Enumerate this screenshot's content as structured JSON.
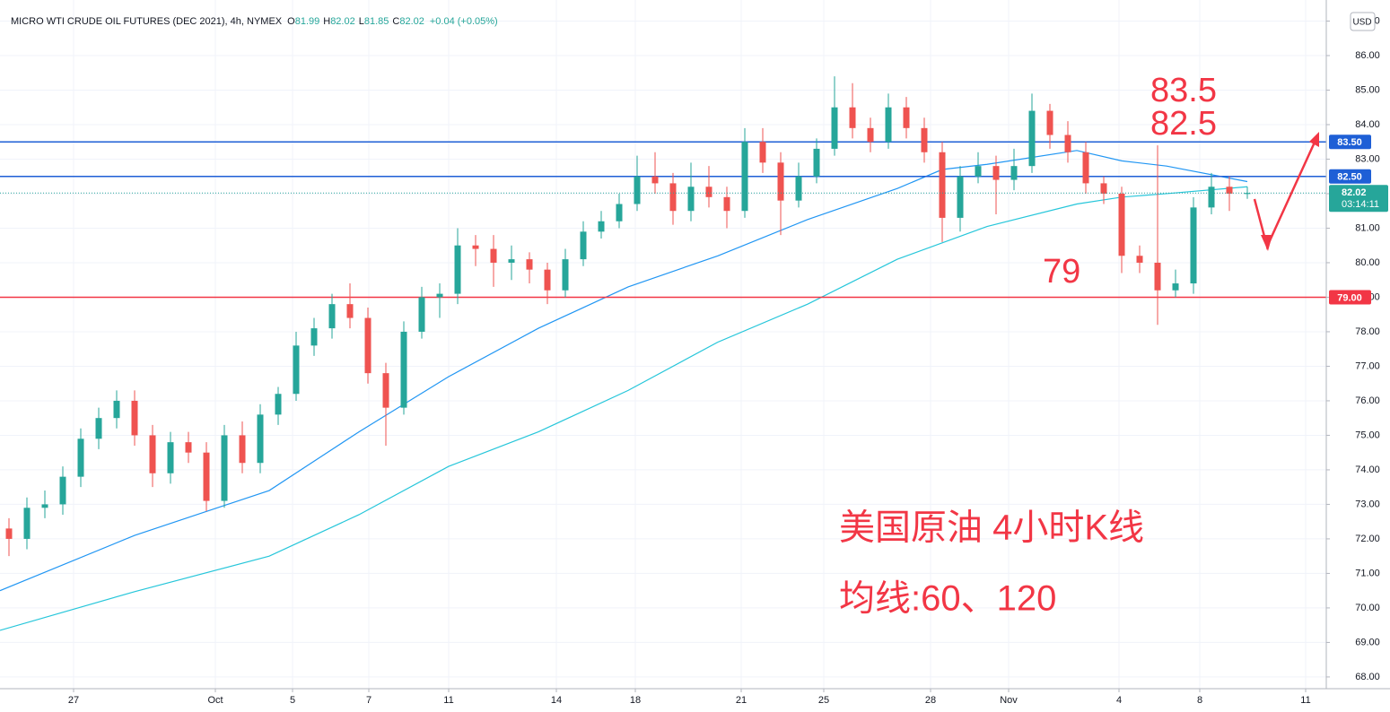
{
  "chart_data": {
    "type": "candlestick",
    "header": {
      "title": "MICRO WTI CRUDE OIL FUTURES (DEC 2021), 4h, NYMEX",
      "ohlc": [
        {
          "key": "O",
          "value": "81.99"
        },
        {
          "key": "H",
          "value": "82.02"
        },
        {
          "key": "L",
          "value": "81.85"
        },
        {
          "key": "C",
          "value": "82.02"
        }
      ],
      "change": "+0.04 (+0.05%)"
    },
    "currency": "USD",
    "up_color": "#26a69a",
    "down_color": "#ef5350",
    "xlim": [
      0,
      147.8
    ],
    "ylim": [
      67.66,
      87.61
    ],
    "grid": true,
    "xticks": [
      {
        "value": 8.2,
        "label": "27"
      },
      {
        "value": 24,
        "label": "Oct"
      },
      {
        "value": 32.6,
        "label": "5"
      },
      {
        "value": 41.1,
        "label": "7"
      },
      {
        "value": 50,
        "label": "11"
      },
      {
        "value": 62,
        "label": "14"
      },
      {
        "value": 70.8,
        "label": "18"
      },
      {
        "value": 82.6,
        "label": "21"
      },
      {
        "value": 91.8,
        "label": "25"
      },
      {
        "value": 103.7,
        "label": "28"
      },
      {
        "value": 112.4,
        "label": "Nov"
      },
      {
        "value": 124.7,
        "label": "4"
      },
      {
        "value": 133.7,
        "label": "8"
      },
      {
        "value": 145.5,
        "label": "11"
      }
    ],
    "yticks": [
      {
        "value": 68,
        "label": "68.00"
      },
      {
        "value": 69,
        "label": "69.00"
      },
      {
        "value": 70,
        "label": "70.00"
      },
      {
        "value": 71,
        "label": "71.00"
      },
      {
        "value": 72,
        "label": "72.00"
      },
      {
        "value": 73,
        "label": "73.00"
      },
      {
        "value": 74,
        "label": "74.00"
      },
      {
        "value": 75,
        "label": "75.00"
      },
      {
        "value": 76,
        "label": "76.00"
      },
      {
        "value": 77,
        "label": "77.00"
      },
      {
        "value": 78,
        "label": "78.00"
      },
      {
        "value": 79,
        "label": "79.00"
      },
      {
        "value": 80,
        "label": "80.00"
      },
      {
        "value": 81,
        "label": "81.00"
      },
      {
        "value": 82,
        "label": "82.00"
      },
      {
        "value": 83,
        "label": "83.00"
      },
      {
        "value": 84,
        "label": "84.00"
      },
      {
        "value": 85,
        "label": "85.00"
      },
      {
        "value": 86,
        "label": "86.00"
      },
      {
        "value": 87,
        "label": "87.00"
      }
    ],
    "candles": {
      "x": [
        1,
        3,
        5,
        7,
        9,
        11,
        13,
        15,
        17,
        19,
        21,
        23,
        25,
        27,
        29,
        31,
        33,
        35,
        37,
        39,
        41,
        43,
        45,
        47,
        49,
        51,
        53,
        55,
        57,
        59,
        61,
        63,
        65,
        67,
        69,
        71,
        73,
        75,
        77,
        79,
        81,
        83,
        85,
        87,
        89,
        91,
        93,
        95,
        97,
        99,
        101,
        103,
        105,
        107,
        109,
        111,
        113,
        115,
        117,
        119,
        121,
        123,
        125,
        127,
        129,
        131,
        133,
        135,
        137,
        139
      ],
      "open": [
        72.3,
        72.0,
        72.9,
        73.0,
        73.8,
        74.9,
        75.5,
        76.0,
        75.0,
        73.9,
        74.8,
        74.5,
        73.1,
        75.0,
        74.2,
        75.6,
        76.2,
        77.6,
        78.1,
        78.8,
        78.4,
        76.8,
        75.8,
        78.0,
        79.0,
        79.1,
        80.5,
        80.4,
        80.0,
        80.1,
        79.8,
        79.2,
        80.1,
        80.9,
        81.2,
        81.7,
        82.5,
        82.3,
        81.5,
        82.2,
        81.9,
        81.5,
        83.5,
        82.9,
        81.8,
        82.5,
        83.3,
        84.5,
        83.9,
        83.5,
        84.5,
        83.9,
        83.2,
        81.3,
        82.5,
        82.8,
        82.4,
        82.8,
        84.4,
        83.7,
        83.2,
        82.3,
        82.0,
        80.2,
        80.0,
        79.2,
        79.4,
        81.6,
        82.2,
        81.99
      ],
      "high": [
        72.6,
        73.2,
        73.4,
        74.1,
        75.2,
        75.8,
        76.3,
        76.3,
        75.3,
        75.1,
        75.1,
        74.8,
        75.3,
        75.4,
        75.9,
        76.4,
        78.0,
        78.4,
        79.1,
        79.4,
        78.7,
        77.1,
        78.3,
        79.3,
        79.4,
        81.0,
        80.8,
        80.8,
        80.5,
        80.3,
        80.0,
        80.4,
        81.2,
        81.5,
        82.0,
        83.1,
        83.2,
        82.6,
        82.9,
        82.8,
        82.2,
        83.9,
        83.9,
        83.2,
        82.9,
        83.6,
        85.4,
        85.2,
        84.2,
        84.9,
        84.8,
        84.2,
        83.5,
        82.8,
        83.2,
        83.1,
        83.3,
        84.9,
        84.6,
        84.1,
        83.5,
        82.5,
        82.2,
        80.5,
        83.4,
        79.8,
        81.9,
        82.6,
        82.5,
        82.2
      ],
      "low": [
        71.5,
        71.7,
        72.6,
        72.7,
        73.5,
        74.6,
        75.2,
        74.7,
        73.5,
        73.6,
        74.2,
        72.8,
        72.9,
        73.9,
        73.9,
        75.3,
        76.0,
        77.3,
        77.8,
        78.1,
        76.5,
        74.7,
        75.6,
        77.8,
        78.4,
        78.8,
        79.9,
        79.3,
        79.5,
        79.4,
        78.8,
        79.0,
        79.9,
        80.7,
        81.0,
        81.5,
        82.0,
        81.1,
        81.2,
        81.6,
        81.0,
        81.3,
        82.6,
        80.8,
        81.6,
        82.3,
        83.1,
        83.6,
        83.2,
        83.3,
        83.6,
        82.9,
        80.6,
        80.9,
        82.3,
        81.4,
        82.1,
        82.6,
        83.3,
        82.9,
        82.0,
        81.7,
        79.7,
        79.7,
        78.2,
        79.0,
        79.1,
        81.4,
        81.5,
        81.85
      ],
      "close": [
        72.0,
        72.9,
        73.0,
        73.8,
        74.9,
        75.5,
        76.0,
        75.0,
        73.9,
        74.8,
        74.5,
        73.1,
        75.0,
        74.2,
        75.6,
        76.2,
        77.6,
        78.1,
        78.8,
        78.4,
        76.8,
        75.8,
        78.0,
        79.0,
        79.1,
        80.5,
        80.4,
        80.0,
        80.1,
        79.8,
        79.2,
        80.1,
        80.9,
        81.2,
        81.7,
        82.5,
        82.3,
        81.5,
        82.2,
        81.9,
        81.5,
        83.5,
        82.9,
        81.8,
        82.5,
        83.3,
        84.5,
        83.9,
        83.5,
        84.5,
        83.9,
        83.2,
        81.3,
        82.5,
        82.8,
        82.4,
        82.8,
        84.4,
        83.7,
        83.2,
        82.3,
        82.0,
        80.2,
        80.0,
        79.2,
        79.4,
        81.6,
        82.2,
        82.0,
        82.02
      ]
    },
    "moving_averages": [
      {
        "color": "#2196f3",
        "x": [
          0,
          15,
          30,
          40,
          50,
          60,
          70,
          80,
          90,
          100,
          105,
          110,
          120,
          125,
          130,
          139
        ],
        "values": [
          70.5,
          72.1,
          73.4,
          75.1,
          76.7,
          78.1,
          79.3,
          80.2,
          81.25,
          82.15,
          82.7,
          82.85,
          83.25,
          82.95,
          82.8,
          82.35
        ]
      },
      {
        "color": "#26c6da",
        "x": [
          0,
          15,
          30,
          40,
          50,
          60,
          70,
          80,
          90,
          100,
          110,
          120,
          125,
          130,
          139
        ],
        "values": [
          69.35,
          70.47,
          71.5,
          72.7,
          74.1,
          75.1,
          76.3,
          77.7,
          78.8,
          80.1,
          81.05,
          81.7,
          81.9,
          82.0,
          82.2
        ]
      }
    ],
    "levels": [
      {
        "value": 83.5,
        "label": "83.50",
        "color": "#1e5fd6"
      },
      {
        "value": 82.5,
        "label": "82.50",
        "color": "#1e5fd6"
      },
      {
        "value": 79,
        "label": "79.00",
        "color": "#f23645"
      }
    ],
    "last_price": {
      "value": 82.02,
      "label": "82.02",
      "countdown": "03:14:11",
      "color": "#26a69a"
    },
    "annotations": [
      "83.5",
      "82.5",
      "79",
      "美国原油 4小时K线",
      "均线:60、120"
    ]
  }
}
